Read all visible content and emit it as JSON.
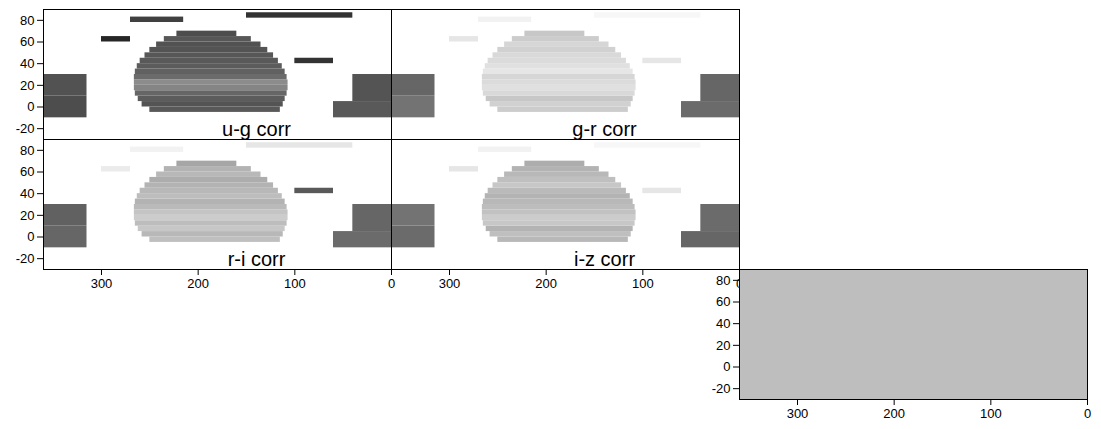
{
  "chart_data": {
    "type": "heatmap",
    "xlim": [
      360,
      0
    ],
    "ylim": [
      -30,
      90
    ],
    "xticks": [
      300,
      200,
      100,
      0
    ],
    "yticks": [
      -20,
      0,
      20,
      40,
      60,
      80
    ],
    "value_range": [
      0,
      1
    ],
    "regions": [
      [
        250,
        115,
        -5,
        0
      ],
      [
        258,
        112,
        0,
        5
      ],
      [
        262,
        110,
        5,
        10
      ],
      [
        265,
        108,
        10,
        15
      ],
      [
        266,
        107,
        15,
        20
      ],
      [
        266,
        107,
        20,
        25
      ],
      [
        266,
        108,
        25,
        30
      ],
      [
        265,
        110,
        30,
        35
      ],
      [
        263,
        113,
        35,
        40
      ],
      [
        260,
        117,
        40,
        45
      ],
      [
        255,
        122,
        45,
        50
      ],
      [
        250,
        128,
        50,
        55
      ],
      [
        243,
        135,
        55,
        60
      ],
      [
        235,
        145,
        60,
        65
      ],
      [
        222,
        160,
        65,
        70
      ],
      [
        360,
        315,
        -10,
        10
      ],
      [
        360,
        315,
        10,
        30
      ],
      [
        60,
        0,
        -10,
        5
      ],
      [
        40,
        0,
        5,
        30
      ],
      [
        150,
        40,
        82,
        87
      ],
      [
        270,
        215,
        78,
        83
      ],
      [
        300,
        270,
        60,
        65
      ],
      [
        100,
        60,
        40,
        45
      ]
    ],
    "panels": [
      {
        "title": "u-g corr",
        "values": [
          0.35,
          0.33,
          0.36,
          0.4,
          0.52,
          0.55,
          0.42,
          0.38,
          0.36,
          0.35,
          0.34,
          0.33,
          0.32,
          0.34,
          0.3,
          0.3,
          0.32,
          0.35,
          0.33,
          0.2,
          0.25,
          0.15,
          0.2
        ]
      },
      {
        "title": "g-r corr",
        "values": [
          0.8,
          0.82,
          0.78,
          0.85,
          0.88,
          0.86,
          0.84,
          0.9,
          0.88,
          0.86,
          0.85,
          0.82,
          0.84,
          0.8,
          0.78,
          0.45,
          0.4,
          0.42,
          0.4,
          0.97,
          0.95,
          0.9,
          0.9
        ]
      },
      {
        "title": "r-i corr",
        "values": [
          0.75,
          0.72,
          0.78,
          0.74,
          0.8,
          0.77,
          0.73,
          0.7,
          0.74,
          0.72,
          0.7,
          0.68,
          0.72,
          0.7,
          0.65,
          0.4,
          0.38,
          0.42,
          0.4,
          0.9,
          0.95,
          0.92,
          0.35
        ]
      },
      {
        "title": "i-z corr",
        "values": [
          0.72,
          0.75,
          0.7,
          0.78,
          0.8,
          0.76,
          0.74,
          0.72,
          0.7,
          0.73,
          0.78,
          0.75,
          0.72,
          0.7,
          0.68,
          0.42,
          0.45,
          0.4,
          0.42,
          0.97,
          0.95,
          0.9,
          0.9
        ]
      }
    ]
  }
}
